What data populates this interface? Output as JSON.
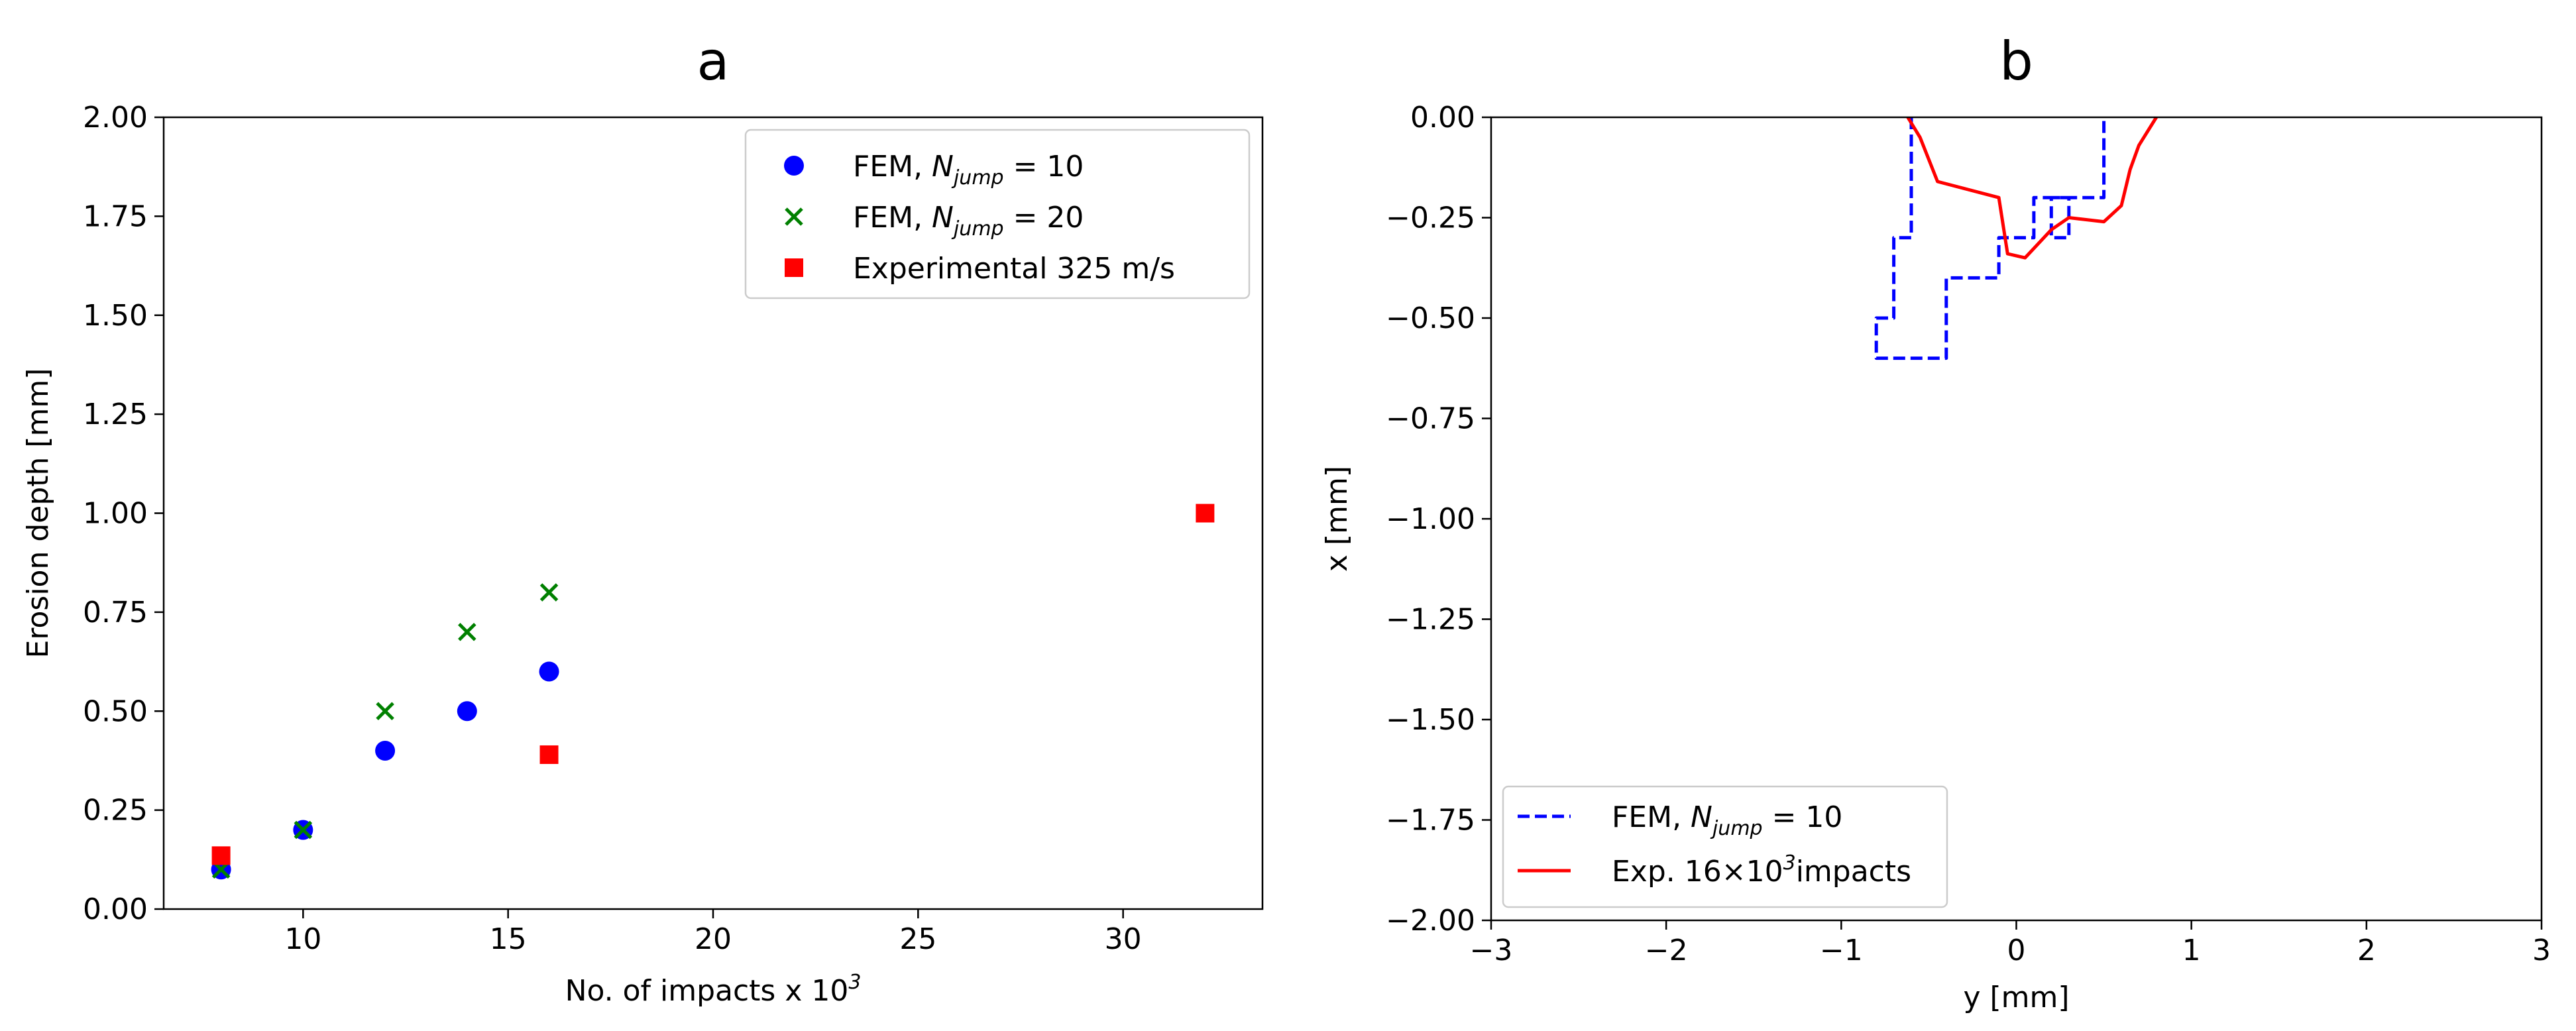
{
  "chart_data": [
    {
      "type": "scatter",
      "title": "a",
      "xlabel": "No. of impacts x 10",
      "xlabel_sup": "3",
      "ylabel": "Erosion depth [mm]",
      "xlim": [
        6.6,
        33.4
      ],
      "ylim": [
        0.0,
        2.0
      ],
      "xticks": [
        10,
        15,
        20,
        25,
        30
      ],
      "yticks": [
        "0.00",
        "0.25",
        "0.50",
        "0.75",
        "1.00",
        "1.25",
        "1.50",
        "1.75",
        "2.00"
      ],
      "legend_position": "upper right",
      "series": [
        {
          "legend": [
            "FEM, ",
            "N",
            "jump",
            " = 10"
          ],
          "marker": "circle",
          "color": "#0000ff",
          "x": [
            8,
            10,
            12,
            14,
            16
          ],
          "y": [
            0.1,
            0.2,
            0.4,
            0.5,
            0.6
          ]
        },
        {
          "legend": [
            "FEM, ",
            "N",
            "jump",
            " = 20"
          ],
          "marker": "x",
          "color": "#008000",
          "x": [
            8,
            10,
            12,
            14,
            16
          ],
          "y": [
            0.1,
            0.2,
            0.5,
            0.7,
            0.8
          ]
        },
        {
          "legend": [
            "Experimental 325 m/s"
          ],
          "marker": "square",
          "color": "#ff0000",
          "x": [
            8,
            16,
            32
          ],
          "y": [
            0.135,
            0.39,
            1.0
          ]
        }
      ]
    },
    {
      "type": "line",
      "title": "b",
      "xlabel": "y [mm]",
      "ylabel": "x [mm]",
      "xlim": [
        -3,
        3
      ],
      "ylim": [
        -2.0,
        0.0
      ],
      "xticks": [
        "−3",
        "−2",
        "−1",
        "0",
        "1",
        "2",
        "3"
      ],
      "yticks": [
        "−2.00",
        "−1.75",
        "−1.50",
        "−1.25",
        "−1.00",
        "−0.75",
        "−0.50",
        "−0.25",
        "0.00"
      ],
      "legend_position": "lower left",
      "series": [
        {
          "legend": [
            "FEM, ",
            "N",
            "jump",
            " = 10"
          ],
          "style": "dashed",
          "color": "#0000ff",
          "x": [
            -0.6,
            -0.6,
            -0.7,
            -0.7,
            -0.75,
            -0.75,
            -0.8,
            -0.8,
            -0.4,
            -0.4,
            -0.1,
            -0.1,
            0.1,
            0.1,
            0.2,
            0.2,
            0.3,
            0.3,
            0.2,
            0.2,
            0.5,
            0.5
          ],
          "y": [
            0.0,
            -0.3,
            -0.3,
            -0.5,
            -0.5,
            -0.5,
            -0.5,
            -0.6,
            -0.6,
            -0.4,
            -0.4,
            -0.3,
            -0.3,
            -0.2,
            -0.2,
            -0.3,
            -0.3,
            -0.2,
            -0.2,
            -0.2,
            -0.2,
            0.0
          ]
        },
        {
          "legend": [
            "Exp. 16×10",
            "3",
            "impacts"
          ],
          "style": "solid",
          "color": "#ff0000",
          "x": [
            -0.62,
            -0.55,
            -0.45,
            -0.1,
            -0.05,
            0.05,
            0.2,
            0.3,
            0.5,
            0.6,
            0.65,
            0.7,
            0.8
          ],
          "y": [
            0.0,
            -0.05,
            -0.16,
            -0.2,
            -0.34,
            -0.35,
            -0.28,
            -0.25,
            -0.26,
            -0.22,
            -0.13,
            -0.07,
            0.0
          ]
        }
      ]
    }
  ]
}
